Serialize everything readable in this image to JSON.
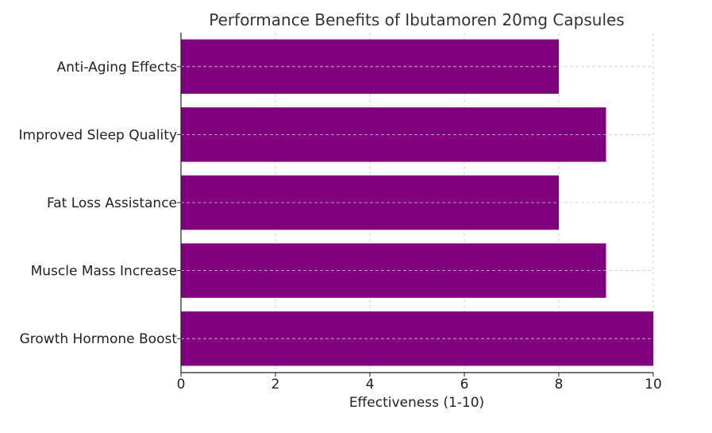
{
  "chart_data": {
    "type": "bar",
    "orientation": "horizontal",
    "title": "Performance Benefits of Ibutamoren 20mg Capsules",
    "xlabel": "Effectiveness (1-10)",
    "ylabel": "",
    "categories": [
      "Growth Hormone Boost",
      "Muscle Mass Increase",
      "Fat Loss Assistance",
      "Improved Sleep Quality",
      "Anti-Aging Effects"
    ],
    "values": [
      10,
      9,
      8,
      9,
      8
    ],
    "xlim": [
      0,
      10
    ],
    "xticks": [
      "0",
      "2",
      "4",
      "6",
      "8",
      "10"
    ],
    "grid": true,
    "bar_color": "#800080"
  }
}
